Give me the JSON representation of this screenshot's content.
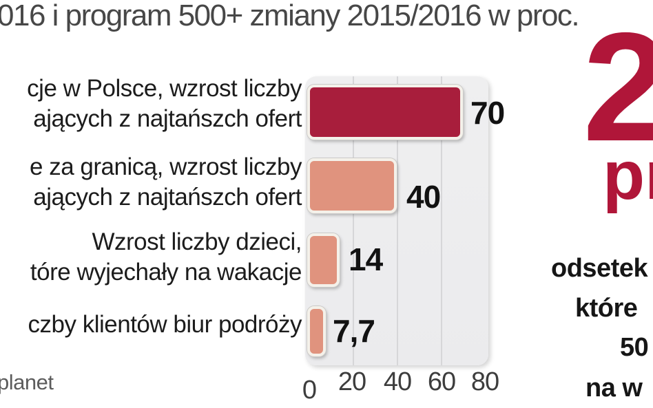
{
  "title": "016 i program 500+ zmiany 2015/2016 w proc.",
  "source": "planet",
  "chart_data": {
    "type": "bar",
    "orientation": "horizontal",
    "title": "016 i program 500+ zmiany 2015/2016 w proc.",
    "categories": [
      {
        "line1": "cje w Polsce, wzrost liczby",
        "line2": "ających z najtańszch ofert"
      },
      {
        "line1": "e za granicą, wzrost liczby",
        "line2": "ających z najtańszch ofert"
      },
      {
        "line1": "Wzrost liczby dzieci,",
        "line2": "tóre wyjechały na wakacje"
      },
      {
        "line1": "czby klientów biur podróży",
        "line2": ""
      }
    ],
    "values": [
      70,
      40,
      14,
      7.7
    ],
    "value_labels": [
      "70",
      "40",
      "14",
      "7,7"
    ],
    "x_ticks": [
      "0",
      "20",
      "40",
      "60",
      "80"
    ],
    "x_tick_values": [
      0,
      20,
      40,
      60,
      80
    ],
    "xlim": [
      0,
      80
    ],
    "grid": true,
    "bar_colors": [
      "#a81e3c",
      "#e0937e",
      "#e0937e",
      "#e0937e"
    ]
  },
  "highlight": {
    "big_number": "2",
    "unit_fragment": "pr",
    "caption_lines": [
      "odsetek",
      "które",
      "50",
      "na w"
    ]
  },
  "colors": {
    "accent_red": "#b01639",
    "bar_dark_red": "#a81e3c",
    "bar_salmon": "#e0937e",
    "plot_background": "#ececee",
    "gridline": "#d6d6d8",
    "label_text": "#1c1c1c",
    "title_text": "#474747",
    "axis_text": "#3d3d3d",
    "source_text": "#5c5c5c"
  }
}
